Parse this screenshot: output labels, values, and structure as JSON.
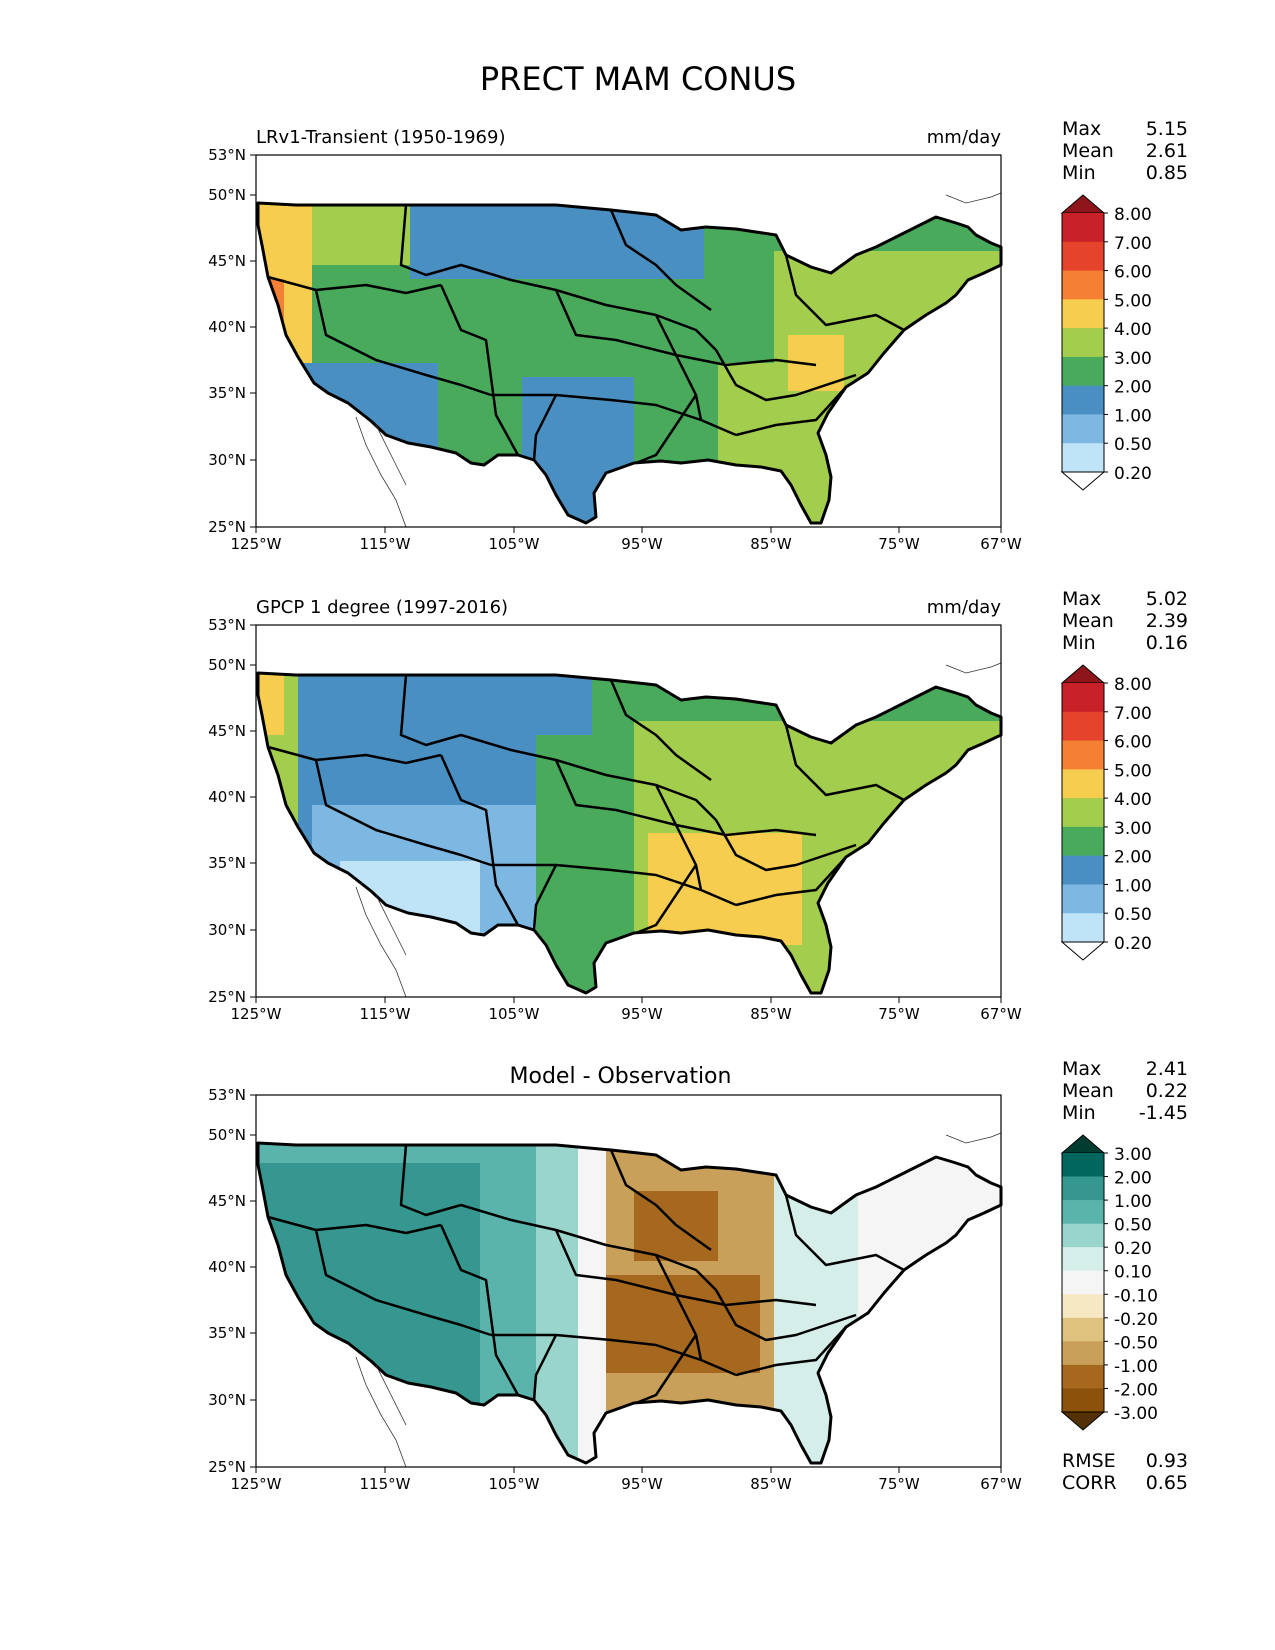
{
  "title": "PRECT MAM CONUS",
  "lat_ticks": [
    "53°N",
    "50°N",
    "45°N",
    "40°N",
    "35°N",
    "30°N",
    "25°N"
  ],
  "lon_ticks": [
    "125°W",
    "115°W",
    "105°W",
    "95°W",
    "85°W",
    "75°W",
    "67°W"
  ],
  "panels": [
    {
      "left_title": "LRv1-Transient (1950-1969)",
      "center_title": "",
      "right_title": "mm/day",
      "stats": [
        {
          "label": "Max",
          "value": "5.15"
        },
        {
          "label": "Mean",
          "value": "2.61"
        },
        {
          "label": "Min",
          "value": "0.85"
        }
      ],
      "colorbar": {
        "levels": [
          "8.00",
          "7.00",
          "6.00",
          "5.00",
          "4.00",
          "3.00",
          "2.00",
          "1.00",
          "0.50",
          "0.20"
        ],
        "colors": [
          "#8e1519",
          "#c8212a",
          "#e5432c",
          "#f57f33",
          "#f7cd4f",
          "#a3cd4c",
          "#4aaa5c",
          "#4a8fc2",
          "#7db8e3",
          "#bfe3f7",
          "#ffffff"
        ]
      },
      "footer": []
    },
    {
      "left_title": "GPCP 1 degree (1997-2016)",
      "center_title": "",
      "right_title": "mm/day",
      "stats": [
        {
          "label": "Max",
          "value": "5.02"
        },
        {
          "label": "Mean",
          "value": "2.39"
        },
        {
          "label": "Min",
          "value": "0.16"
        }
      ],
      "colorbar": {
        "levels": [
          "8.00",
          "7.00",
          "6.00",
          "5.00",
          "4.00",
          "3.00",
          "2.00",
          "1.00",
          "0.50",
          "0.20"
        ],
        "colors": [
          "#8e1519",
          "#c8212a",
          "#e5432c",
          "#f57f33",
          "#f7cd4f",
          "#a3cd4c",
          "#4aaa5c",
          "#4a8fc2",
          "#7db8e3",
          "#bfe3f7",
          "#ffffff"
        ]
      },
      "footer": []
    },
    {
      "left_title": "",
      "center_title": "Model - Observation",
      "right_title": "",
      "stats": [
        {
          "label": "Max",
          "value": "2.41"
        },
        {
          "label": "Mean",
          "value": "0.22"
        },
        {
          "label": "Min",
          "value": "-1.45"
        }
      ],
      "colorbar": {
        "levels": [
          "3.00",
          "2.00",
          "1.00",
          "0.50",
          "0.20",
          "0.10",
          "-0.10",
          "-0.20",
          "-0.50",
          "-1.00",
          "-2.00",
          "-3.00"
        ],
        "colors": [
          "#003c30",
          "#01665e",
          "#35978f",
          "#5ab4ac",
          "#99d5cc",
          "#d6eee9",
          "#f5f5f5",
          "#f6e8c3",
          "#dfc27d",
          "#c8a05a",
          "#a6681f",
          "#8c510a",
          "#543005"
        ]
      },
      "footer": [
        {
          "label": "RMSE",
          "value": "0.93"
        },
        {
          "label": "CORR",
          "value": "0.65"
        }
      ]
    }
  ]
}
